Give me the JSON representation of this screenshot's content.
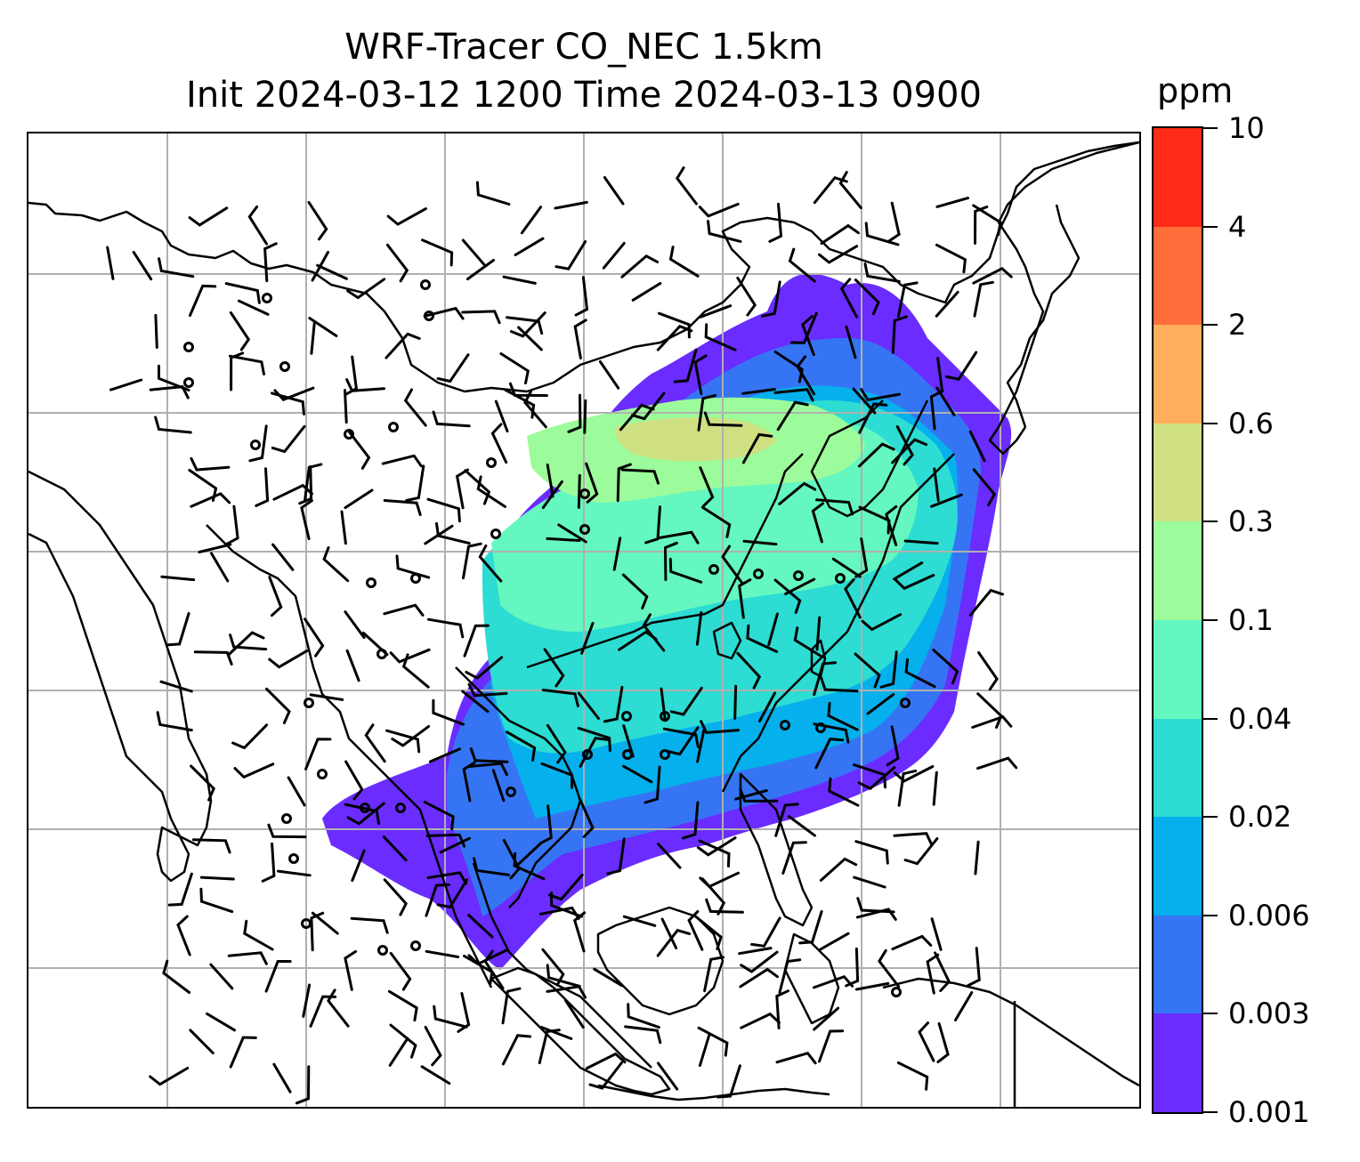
{
  "title": {
    "line1": "WRF-Tracer CO_NEC 1.5km",
    "line2": "Init 2024-03-12 1200 Time 2024-03-13 0900"
  },
  "colorbar": {
    "unit": "ppm",
    "levels": [
      "0.001",
      "0.003",
      "0.006",
      "0.02",
      "0.04",
      "0.1",
      "0.3",
      "0.6",
      "2",
      "4",
      "10"
    ],
    "colors": [
      "#6a2cff",
      "#3575f4",
      "#06b0ec",
      "#2ddcd2",
      "#64f7c0",
      "#9cfb9a",
      "#cfe083",
      "#ffae5c",
      "#ff6e3a",
      "#ff2b17"
    ]
  },
  "map": {
    "gridlines": "on",
    "field": "CO_NEC tracer concentration, filled contours",
    "overlay": "wind barbs"
  }
}
